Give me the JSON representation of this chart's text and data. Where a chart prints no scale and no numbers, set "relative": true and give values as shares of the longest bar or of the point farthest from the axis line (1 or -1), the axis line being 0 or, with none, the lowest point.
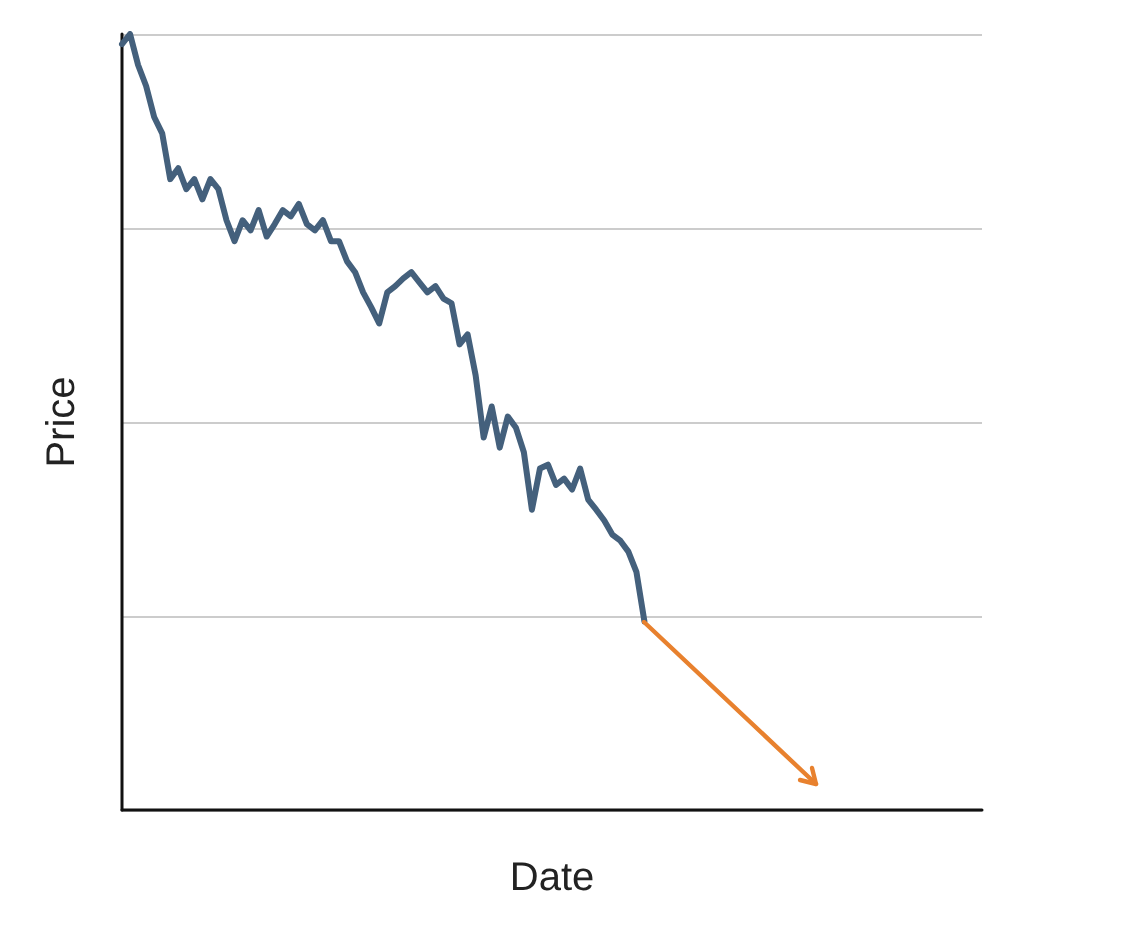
{
  "chart_data": {
    "type": "line",
    "xlabel": "Date",
    "ylabel": "Price",
    "relative": true,
    "grid": "y",
    "line_style": "solid",
    "categories": [
      null,
      null,
      null,
      null,
      null,
      null,
      null,
      null,
      null,
      null,
      null,
      null,
      null,
      null,
      null,
      null,
      null,
      null,
      null,
      null,
      null,
      null,
      null,
      null,
      null,
      null,
      null,
      null,
      null,
      null,
      null,
      null,
      null,
      null,
      null,
      null,
      null,
      null,
      null,
      null,
      null,
      null,
      null,
      null,
      null,
      null,
      null,
      null,
      null,
      null,
      null,
      null,
      null,
      null,
      null,
      null,
      null,
      null,
      null,
      null,
      null,
      null,
      null,
      null,
      null,
      null,
      null,
      null,
      null,
      null,
      null,
      null,
      null,
      null,
      null,
      null,
      null,
      null,
      null,
      null,
      null,
      null,
      null,
      null,
      null,
      null,
      null,
      null,
      null,
      null,
      null,
      null,
      null,
      null,
      null,
      null,
      null,
      null,
      null,
      null,
      null,
      null,
      null,
      null,
      null,
      null,
      null,
      null
    ],
    "series": [
      {
        "color": "#44607c",
        "values": [
          0.987,
          1,
          0.96,
          0.933,
          0.893,
          0.872,
          0.813,
          0.827,
          0.8,
          0.813,
          0.787,
          0.813,
          0.8,
          0.76,
          0.733,
          0.76,
          0.747,
          0.773,
          0.739,
          0.755,
          0.773,
          0.765,
          0.781,
          0.755,
          0.747,
          0.76,
          0.733,
          0.733,
          0.707,
          0.693,
          0.667,
          0.648,
          0.627,
          0.667,
          0.675,
          0.685,
          0.693,
          0.68,
          0.667,
          0.675,
          0.659,
          0.653,
          0.6,
          0.613,
          0.56,
          0.48,
          0.52,
          0.467,
          0.507,
          0.493,
          0.461,
          0.387,
          0.44,
          0.445,
          0.419,
          0.427,
          0.413,
          0.44,
          0.4,
          0.387,
          0.373,
          0.355,
          0.347,
          0.333,
          0.307,
          0.243,
          null,
          null,
          null,
          null,
          null,
          null,
          null,
          null,
          null,
          null,
          null,
          null,
          null,
          null,
          null,
          null,
          null,
          null,
          null,
          null,
          null,
          null,
          null,
          null,
          null,
          null,
          null,
          null,
          null,
          null,
          null,
          null,
          null,
          null,
          null,
          null,
          null,
          null,
          null,
          null,
          null,
          null
        ]
      }
    ]
  }
}
